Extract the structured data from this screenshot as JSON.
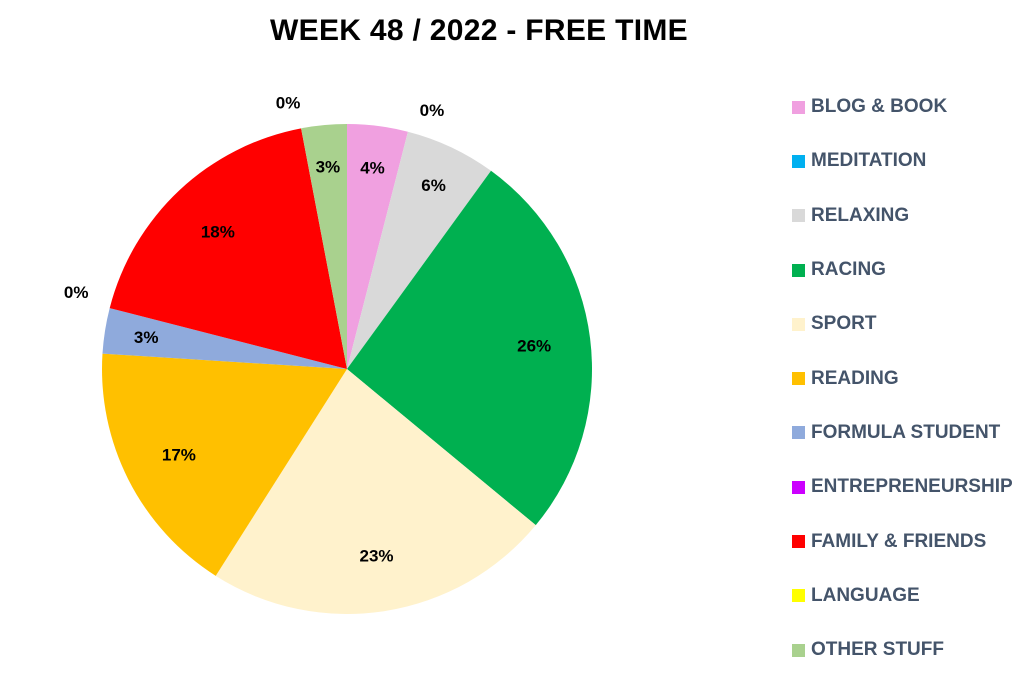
{
  "chart_data": {
    "type": "pie",
    "title": "WEEK 48 / 2022 - FREE TIME",
    "slices": [
      {
        "name": "BLOG & BOOK",
        "value": 4,
        "label": "4%",
        "color": "#f0a0e0"
      },
      {
        "name": "MEDITATION",
        "value": 0,
        "label": "0%",
        "color": "#00b0f0"
      },
      {
        "name": "RELAXING",
        "value": 6,
        "label": "6%",
        "color": "#d9d9d9"
      },
      {
        "name": "RACING",
        "value": 26,
        "label": "26%",
        "color": "#00b050"
      },
      {
        "name": "SPORT",
        "value": 23,
        "label": "23%",
        "color": "#fff2cc"
      },
      {
        "name": "READING",
        "value": 17,
        "label": "17%",
        "color": "#ffc000"
      },
      {
        "name": "FORMULA STUDENT",
        "value": 3,
        "label": "3%",
        "color": "#8faadc"
      },
      {
        "name": "ENTREPRENEURSHIP",
        "value": 0,
        "label": "0%",
        "color": "#cc00ff"
      },
      {
        "name": "FAMILY & FRIENDS",
        "value": 18,
        "label": "18%",
        "color": "#ff0000"
      },
      {
        "name": "LANGUAGE",
        "value": 0,
        "label": "0%",
        "color": "#ffff00"
      },
      {
        "name": "OTHER STUFF",
        "value": 3,
        "label": "3%",
        "color": "#a9d18e"
      }
    ],
    "legend_position": "right"
  }
}
